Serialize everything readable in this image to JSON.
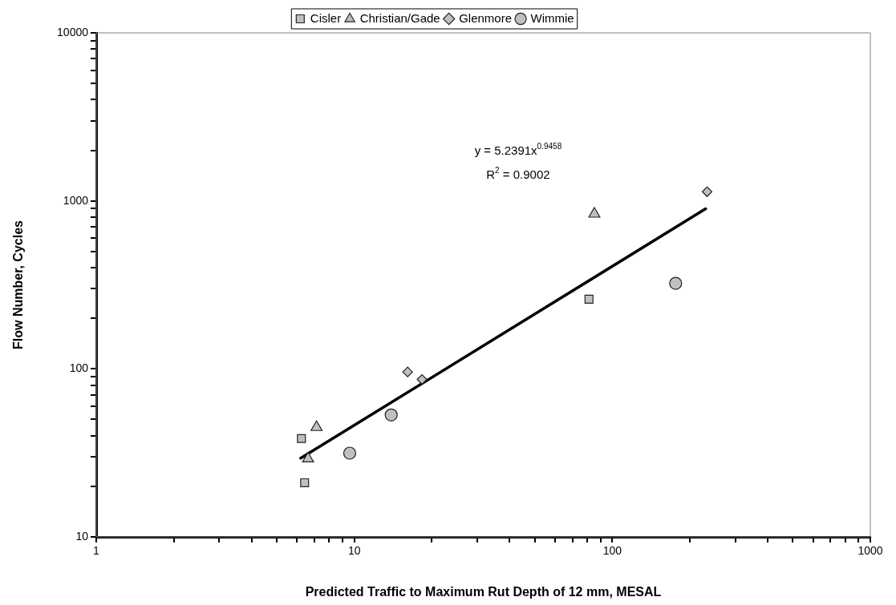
{
  "chart_data": {
    "type": "scatter",
    "xlabel": "Predicted Traffic to Maximum Rut Depth of 12 mm, MESAL",
    "ylabel": "Flow Number, Cycles",
    "log": "xy",
    "grid": false,
    "legend": "top",
    "xlim": [
      1,
      1000
    ],
    "xticks": [
      1,
      {
        "value": 2,
        "label": null
      },
      {
        "value": 3,
        "label": null
      },
      {
        "value": 4,
        "label": null
      },
      {
        "value": 5,
        "label": null
      },
      {
        "value": 6,
        "label": null
      },
      {
        "value": 7,
        "label": null
      },
      {
        "value": 8,
        "label": null
      },
      {
        "value": 9,
        "label": null
      },
      10,
      {
        "value": 20,
        "label": null
      },
      {
        "value": 30,
        "label": null
      },
      {
        "value": 40,
        "label": null
      },
      {
        "value": 50,
        "label": null
      },
      {
        "value": 60,
        "label": null
      },
      {
        "value": 70,
        "label": null
      },
      {
        "value": 80,
        "label": null
      },
      {
        "value": 90,
        "label": null
      },
      100,
      {
        "value": 200,
        "label": null
      },
      {
        "value": 300,
        "label": null
      },
      {
        "value": 400,
        "label": null
      },
      {
        "value": 500,
        "label": null
      },
      {
        "value": 600,
        "label": null
      },
      {
        "value": 700,
        "label": null
      },
      {
        "value": 800,
        "label": null
      },
      {
        "value": 900,
        "label": null
      },
      1000
    ],
    "ylim": [
      10,
      10000
    ],
    "yticks": [
      10,
      {
        "value": 20,
        "label": null
      },
      {
        "value": 30,
        "label": null
      },
      {
        "value": 40,
        "label": null
      },
      {
        "value": 50,
        "label": null
      },
      {
        "value": 60,
        "label": null
      },
      {
        "value": 70,
        "label": null
      },
      {
        "value": 80,
        "label": null
      },
      {
        "value": 90,
        "label": null
      },
      100,
      {
        "value": 200,
        "label": null
      },
      {
        "value": 300,
        "label": null
      },
      {
        "value": 400,
        "label": null
      },
      {
        "value": 500,
        "label": null
      },
      {
        "value": 600,
        "label": null
      },
      {
        "value": 700,
        "label": null
      },
      {
        "value": 800,
        "label": null
      },
      {
        "value": 900,
        "label": null
      },
      1000,
      {
        "value": 2000,
        "label": null
      },
      {
        "value": 3000,
        "label": null
      },
      {
        "value": 4000,
        "label": null
      },
      {
        "value": 5000,
        "label": null
      },
      {
        "value": 6000,
        "label": null
      },
      {
        "value": 7000,
        "label": null
      },
      {
        "value": 8000,
        "label": null
      },
      {
        "value": 9000,
        "label": null
      },
      10000
    ],
    "annotations": [
      "y = 5.2391x$^{0.9458}$",
      "R$^{2}$ = 0.9002"
    ],
    "series": [
      {
        "name": "Cisler",
        "color": "#c0c0c0",
        "marker": "square",
        "x": [
          6.24,
          6.42,
          81.2
        ],
        "values": [
          38.5,
          21.0,
          260
        ]
      },
      {
        "name": "Christian/Gade",
        "color": "#c0c0c0",
        "marker": "triangle",
        "x": [
          7.14,
          6.62,
          85.2
        ],
        "values": [
          44.9,
          29.2,
          836
        ]
      },
      {
        "name": "Glenmore",
        "color": "#c0c0c0",
        "marker": "diamond",
        "x": [
          16.1,
          18.3,
          233
        ],
        "values": [
          95.9,
          86.5,
          1133
        ]
      },
      {
        "name": "Wimmie",
        "color": "#c0c0c0",
        "marker": "circle",
        "x": [
          9.6,
          13.9,
          176
        ],
        "values": [
          31.5,
          53.2,
          323
        ]
      },
      {
        "type": "line",
        "color": "#000000",
        "marker": "none",
        "line_style": "solid",
        "x": [
          6.2,
          230
        ],
        "values": [
          29.4,
          897
        ]
      }
    ]
  }
}
